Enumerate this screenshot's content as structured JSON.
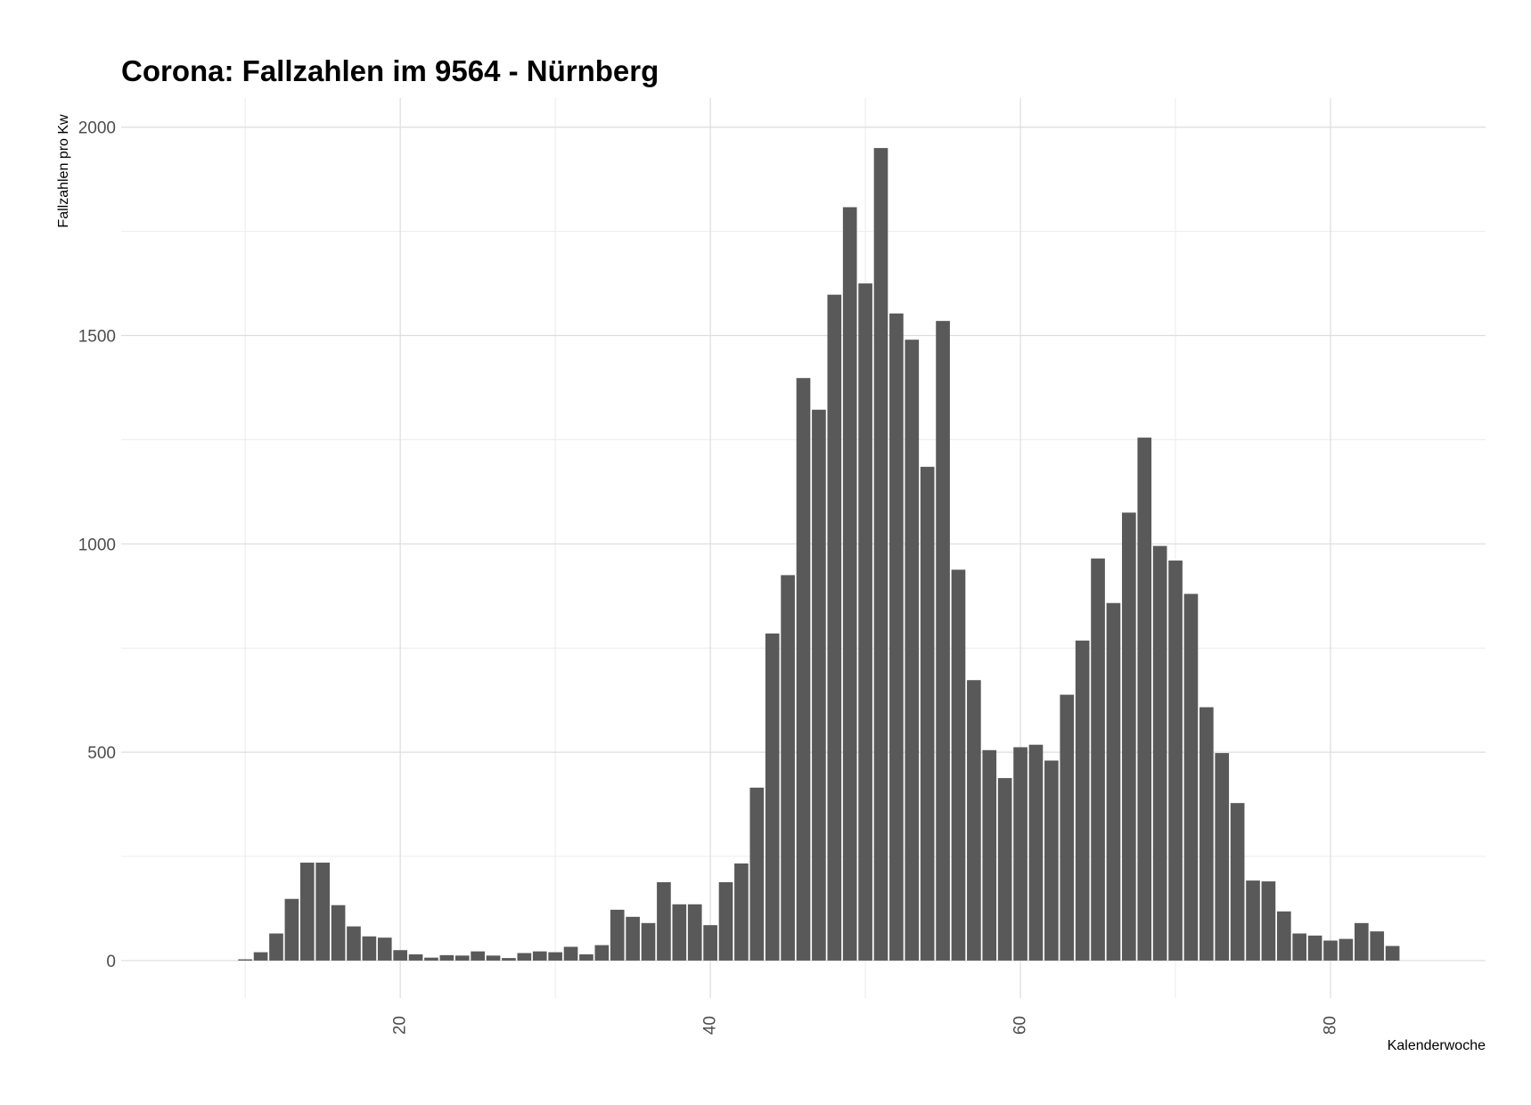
{
  "chart_data": {
    "type": "bar",
    "title": "Corona: Fallzahlen im 9564 - Nürnberg",
    "xlabel": "Kalenderwoche",
    "ylabel": "Fallzahlen pro Kw",
    "xlim": [
      2,
      90
    ],
    "ylim": [
      -90,
      2070
    ],
    "x_ticks": [
      20,
      40,
      60,
      80
    ],
    "x_minor": [
      10,
      30,
      50,
      70
    ],
    "y_ticks": [
      0,
      500,
      1000,
      1500,
      2000
    ],
    "y_minor": [
      250,
      750,
      1250,
      1750
    ],
    "grid": true,
    "bar_color": "#595959",
    "x": [
      10,
      11,
      12,
      13,
      14,
      15,
      16,
      17,
      18,
      19,
      20,
      21,
      22,
      23,
      24,
      25,
      26,
      27,
      28,
      29,
      30,
      31,
      32,
      33,
      34,
      35,
      36,
      37,
      38,
      39,
      40,
      41,
      42,
      43,
      44,
      45,
      46,
      47,
      48,
      49,
      50,
      51,
      52,
      53,
      54,
      55,
      56,
      57,
      58,
      59,
      60,
      61,
      62,
      63,
      64,
      65,
      66,
      67,
      68,
      69,
      70,
      71,
      72,
      73,
      74,
      75,
      76,
      77,
      78,
      79,
      80,
      81,
      82,
      83,
      84
    ],
    "values": [
      3,
      20,
      65,
      148,
      235,
      235,
      133,
      82,
      58,
      55,
      25,
      15,
      7,
      13,
      12,
      22,
      12,
      6,
      18,
      22,
      20,
      33,
      15,
      37,
      122,
      105,
      90,
      188,
      135,
      135,
      85,
      188,
      233,
      415,
      785,
      925,
      1398,
      1322,
      1598,
      1808,
      1625,
      1950,
      1553,
      1490,
      1185,
      1535,
      938,
      673,
      505,
      438,
      512,
      518,
      480,
      638,
      768,
      965,
      858,
      1075,
      1255,
      995,
      960,
      880,
      608,
      498,
      378,
      192,
      190,
      118,
      65,
      60,
      48,
      52,
      90,
      70,
      35
    ]
  }
}
